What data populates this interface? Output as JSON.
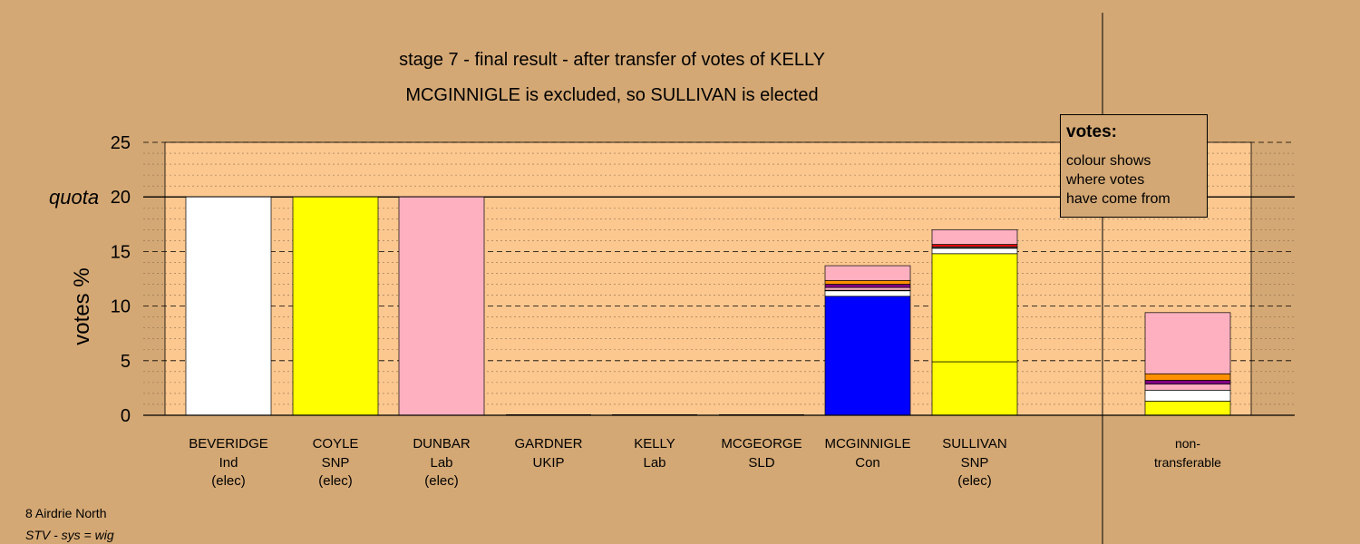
{
  "chart_data": {
    "type": "bar",
    "stacked": true,
    "title_line1": "stage 7 - final result - after transfer of votes of KELLY",
    "title_line2": "MCGINNIGLE is excluded, so SULLIVAN is elected",
    "ylabel": "votes %",
    "ylim": [
      0,
      25
    ],
    "yticks": [
      0,
      5,
      10,
      15,
      20,
      25
    ],
    "quota": 20,
    "quota_label": "quota",
    "grid": true,
    "legend": {
      "title": "votes:",
      "lines": [
        "colour shows",
        "where votes",
        "have come from"
      ],
      "placement": "top-right"
    },
    "colors": {
      "background": "#d4a874",
      "plot_area": "#fcc890",
      "white": "#ffffff",
      "yellow": "#ffff00",
      "pink": "#ffb0c0",
      "blue": "#0000ff",
      "orange": "#ff9000",
      "purple": "#800080",
      "red": "#ff0000"
    },
    "candidates": [
      {
        "name": "BEVERIDGE",
        "party": "Ind",
        "status": "(elec)",
        "segments": [
          {
            "source": "white",
            "value": 20.0
          }
        ]
      },
      {
        "name": "COYLE",
        "party": "SNP",
        "status": "(elec)",
        "segments": [
          {
            "source": "yellow",
            "value": 20.0
          }
        ]
      },
      {
        "name": "DUNBAR",
        "party": "Lab",
        "status": "(elec)",
        "segments": [
          {
            "source": "pink",
            "value": 20.0
          }
        ]
      },
      {
        "name": "GARDNER",
        "party": "UKIP",
        "status": "",
        "segments": []
      },
      {
        "name": "KELLY",
        "party": "Lab",
        "status": "",
        "segments": []
      },
      {
        "name": "MCGEORGE",
        "party": "SLD",
        "status": "",
        "segments": []
      },
      {
        "name": "MCGINNIGLE",
        "party": "Con",
        "status": "",
        "segments": [
          {
            "source": "blue",
            "value": 10.9
          },
          {
            "source": "white",
            "value": 0.5
          },
          {
            "source": "yellow",
            "value": 0.05
          },
          {
            "source": "pink",
            "value": 0.25
          },
          {
            "source": "purple",
            "value": 0.3
          },
          {
            "source": "orange",
            "value": 0.35
          },
          {
            "source": "pink",
            "value": 1.35
          }
        ]
      },
      {
        "name": "SULLIVAN",
        "party": "SNP",
        "status": "(elec)",
        "segments": [
          {
            "source": "yellow",
            "value": 4.9
          },
          {
            "source": "yellow",
            "value": 9.9
          },
          {
            "source": "white",
            "value": 0.5
          },
          {
            "source": "yellow",
            "value": 0.05
          },
          {
            "source": "pink",
            "value": 0.1
          },
          {
            "source": "red",
            "value": 0.2
          },
          {
            "source": "pink",
            "value": 1.35
          }
        ]
      },
      {
        "name": "non-",
        "party": "transferable",
        "status": "",
        "gap_before": true,
        "segments": [
          {
            "source": "yellow",
            "value": 1.3
          },
          {
            "source": "white",
            "value": 1.0
          },
          {
            "source": "pink",
            "value": 0.55
          },
          {
            "source": "purple",
            "value": 0.35
          },
          {
            "source": "orange",
            "value": 0.6
          },
          {
            "source": "pink",
            "value": 5.6
          }
        ]
      }
    ]
  },
  "footer": {
    "area": "8 Airdrie North",
    "system": "STV - sys = wig"
  }
}
